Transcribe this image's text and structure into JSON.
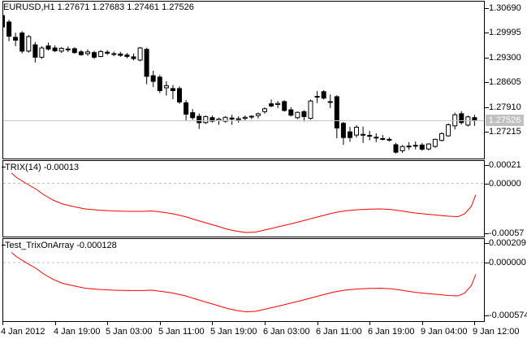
{
  "title": {
    "text": "EURUSD,H1 1.27671 1.27683 1.27461 1.27526"
  },
  "symbol": "EURUSD",
  "timeframe": "H1",
  "ohlc_display": {
    "open": "1.27671",
    "high": "1.27683",
    "low": "1.27461",
    "close": "1.27526"
  },
  "colors": {
    "background": "#ffffff",
    "border": "#000000",
    "bull_fill": "#ffffff",
    "bear_fill": "#000000",
    "wick": "#000000",
    "indicator_line": "#ff0000",
    "current_price_line": "#c8c8c8",
    "zero_line_dash": "#c0c0c0",
    "tag_bg": "#c0c0c0",
    "tag_text": "#ffffff"
  },
  "main_chart": {
    "price_tag": "1.27526",
    "y_tick_labels": [
      "1.30690",
      "1.29995",
      "1.29300",
      "1.28605",
      "1.27910",
      "1.27215"
    ]
  },
  "indicator1": {
    "label": "TRIX(14)",
    "value": "-0.00013",
    "y_tick_labels": [
      "0.00021",
      "0.00000",
      "-0.00057"
    ]
  },
  "indicator2": {
    "label": "Test_TrixOnArray",
    "value": "-0.000128",
    "y_tick_labels": [
      "0.000209",
      "0.000000",
      "-0.000574"
    ]
  },
  "time_axis": {
    "labels": [
      "4 Jan 2012",
      "4 Jan 19:00",
      "5 Jan 03:00",
      "5 Jan 11:00",
      "5 Jan 19:00",
      "6 Jan 03:00",
      "6 Jan 11:00",
      "6 Jan 19:00",
      "9 Jan 04:00",
      "9 Jan 12:00"
    ]
  },
  "chart_data": [
    {
      "type": "candlestick",
      "panel": "main",
      "title": "EURUSD,H1",
      "current_price": 1.27526,
      "y_axis_ticks": [
        1.3069,
        1.29995,
        1.293,
        1.28605,
        1.2791,
        1.27215
      ],
      "x_tick_labels": [
        "4 Jan 2012",
        "4 Jan 19:00",
        "5 Jan 03:00",
        "5 Jan 11:00",
        "5 Jan 19:00",
        "6 Jan 03:00",
        "6 Jan 11:00",
        "6 Jan 19:00",
        "9 Jan 04:00",
        "9 Jan 12:00"
      ],
      "candles_ohlc": [
        [
          1.3048,
          1.3053,
          1.3,
          1.3016
        ],
        [
          1.303,
          1.3036,
          1.2976,
          1.299
        ],
        [
          1.2987,
          1.3,
          1.2962,
          1.2979
        ],
        [
          1.2999,
          1.3004,
          1.2942,
          1.2948
        ],
        [
          1.2948,
          1.2993,
          1.2944,
          1.2989
        ],
        [
          1.2966,
          1.2974,
          1.2916,
          1.2931
        ],
        [
          1.2931,
          1.2962,
          1.2926,
          1.2957
        ],
        [
          1.2963,
          1.2972,
          1.295,
          1.2954
        ],
        [
          1.2957,
          1.2964,
          1.2945,
          1.2949
        ],
        [
          1.2948,
          1.2959,
          1.2943,
          1.2956
        ],
        [
          1.2954,
          1.2961,
          1.2945,
          1.2952
        ],
        [
          1.2955,
          1.2959,
          1.2941,
          1.2944
        ],
        [
          1.2946,
          1.2951,
          1.2935,
          1.2938
        ],
        [
          1.2941,
          1.2953,
          1.2935,
          1.2946
        ],
        [
          1.2944,
          1.2949,
          1.2926,
          1.2931
        ],
        [
          1.2933,
          1.2951,
          1.2931,
          1.2947
        ],
        [
          1.2945,
          1.2951,
          1.2937,
          1.2942
        ],
        [
          1.2941,
          1.2947,
          1.2934,
          1.2939
        ],
        [
          1.294,
          1.2946,
          1.2932,
          1.2936
        ],
        [
          1.2937,
          1.2943,
          1.2928,
          1.2933
        ],
        [
          1.2932,
          1.2941,
          1.2922,
          1.2927
        ],
        [
          1.2923,
          1.296,
          1.2919,
          1.2957
        ],
        [
          1.2953,
          1.2958,
          1.2855,
          1.2877
        ],
        [
          1.2879,
          1.2893,
          1.2847,
          1.2863
        ],
        [
          1.2875,
          1.2881,
          1.283,
          1.2837
        ],
        [
          1.2845,
          1.2863,
          1.2823,
          1.2851
        ],
        [
          1.2843,
          1.2853,
          1.2813,
          1.2837
        ],
        [
          1.2843,
          1.2849,
          1.28,
          1.2805
        ],
        [
          1.2803,
          1.2811,
          1.2754,
          1.2771
        ],
        [
          1.2775,
          1.2785,
          1.2755,
          1.2761
        ],
        [
          1.2765,
          1.2773,
          1.2729,
          1.2747
        ],
        [
          1.2747,
          1.2767,
          1.2743,
          1.2764
        ],
        [
          1.2761,
          1.2767,
          1.2747,
          1.2751
        ],
        [
          1.2753,
          1.2761,
          1.2741,
          1.2757
        ],
        [
          1.2751,
          1.2765,
          1.2747,
          1.2762
        ],
        [
          1.276,
          1.2769,
          1.2741,
          1.2757
        ],
        [
          1.2755,
          1.2765,
          1.2747,
          1.2758
        ],
        [
          1.2759,
          1.2767,
          1.2751,
          1.2762
        ],
        [
          1.2763,
          1.2768,
          1.2757,
          1.2765
        ],
        [
          1.2767,
          1.2775,
          1.2759,
          1.2772
        ],
        [
          1.2778,
          1.279,
          1.2772,
          1.2786
        ],
        [
          1.28,
          1.2812,
          1.279,
          1.2794
        ],
        [
          1.2798,
          1.2808,
          1.2788,
          1.2801
        ],
        [
          1.2806,
          1.281,
          1.2778,
          1.2781
        ],
        [
          1.2783,
          1.279,
          1.2764,
          1.2768
        ],
        [
          1.2761,
          1.2778,
          1.2757,
          1.2776
        ],
        [
          1.2778,
          1.2782,
          1.275,
          1.2764
        ],
        [
          1.2759,
          1.2812,
          1.2755,
          1.2808
        ],
        [
          1.282,
          1.2836,
          1.2802,
          1.2821
        ],
        [
          1.2834,
          1.2838,
          1.2812,
          1.2816
        ],
        [
          1.2805,
          1.2826,
          1.2788,
          1.2806
        ],
        [
          1.282,
          1.2824,
          1.2703,
          1.2732
        ],
        [
          1.2745,
          1.2749,
          1.2685,
          1.2705
        ],
        [
          1.2721,
          1.2735,
          1.2693,
          1.2705
        ],
        [
          1.2712,
          1.274,
          1.2705,
          1.2734
        ],
        [
          1.2714,
          1.2736,
          1.269,
          1.2713
        ],
        [
          1.271,
          1.2724,
          1.2697,
          1.2711
        ],
        [
          1.2705,
          1.2717,
          1.2692,
          1.2706
        ],
        [
          1.2702,
          1.2712,
          1.2697,
          1.2701
        ],
        [
          1.27,
          1.2706,
          1.2694,
          1.2698
        ],
        [
          1.2685,
          1.269,
          1.266,
          1.2664
        ],
        [
          1.2668,
          1.2684,
          1.2662,
          1.268
        ],
        [
          1.268,
          1.2692,
          1.267,
          1.2681
        ],
        [
          1.2682,
          1.2694,
          1.2672,
          1.2683
        ],
        [
          1.2684,
          1.269,
          1.2668,
          1.2672
        ],
        [
          1.2673,
          1.2689,
          1.2669,
          1.2687
        ],
        [
          1.268,
          1.2702,
          1.2676,
          1.27
        ],
        [
          1.2697,
          1.272,
          1.2694,
          1.2716
        ],
        [
          1.271,
          1.2745,
          1.2707,
          1.2741
        ],
        [
          1.2738,
          1.2775,
          1.2728,
          1.2769
        ],
        [
          1.2772,
          1.2779,
          1.2742,
          1.2747
        ],
        [
          1.274,
          1.2767,
          1.2736,
          1.2763
        ],
        [
          1.2761,
          1.2769,
          1.2738,
          1.27526
        ]
      ]
    },
    {
      "type": "line",
      "panel": "indicator1",
      "name": "TRIX(14)",
      "last_value": -0.00013,
      "color": "#ff0000",
      "y_axis_ticks": [
        0.00021,
        0.0,
        -0.00057
      ],
      "points": [
        [
          1.4,
          0.000115
        ],
        [
          2.1,
          6.9e-05
        ],
        [
          3.7,
          -5e-06
        ],
        [
          5.2,
          -6.9e-05
        ],
        [
          6.2,
          -0.000124
        ],
        [
          7.7,
          -0.000189
        ],
        [
          9.2,
          -0.000235
        ],
        [
          10.8,
          -0.000262
        ],
        [
          12.6,
          -0.00029
        ],
        [
          14.7,
          -0.000304
        ],
        [
          17,
          -0.000313
        ],
        [
          19.4,
          -0.000317
        ],
        [
          21.3,
          -0.000317
        ],
        [
          22.8,
          -0.000313
        ],
        [
          24.4,
          -0.000327
        ],
        [
          26,
          -0.000345
        ],
        [
          27.9,
          -0.000377
        ],
        [
          29.3,
          -0.000409
        ],
        [
          31.2,
          -0.000451
        ],
        [
          32.7,
          -0.000483
        ],
        [
          34.3,
          -0.00052
        ],
        [
          35.8,
          -0.000543
        ],
        [
          37.2,
          -0.000557
        ],
        [
          38.6,
          -0.000552
        ],
        [
          40.5,
          -0.00052
        ],
        [
          42.4,
          -0.000487
        ],
        [
          44.2,
          -0.000455
        ],
        [
          46.1,
          -0.000419
        ],
        [
          48,
          -0.000382
        ],
        [
          50.4,
          -0.000336
        ],
        [
          52.1,
          -0.000313
        ],
        [
          54.1,
          -0.000299
        ],
        [
          56,
          -0.000293
        ],
        [
          57.6,
          -0.00029
        ],
        [
          59.3,
          -0.000297
        ],
        [
          60.9,
          -0.000313
        ],
        [
          62.9,
          -0.000336
        ],
        [
          64.8,
          -0.00035
        ],
        [
          66.5,
          -0.000362
        ],
        [
          68.1,
          -0.000373
        ],
        [
          69.5,
          -0.000377
        ],
        [
          70.5,
          -0.000345
        ],
        [
          71.5,
          -0.000262
        ],
        [
          72.2,
          -0.00013
        ]
      ]
    },
    {
      "type": "line",
      "panel": "indicator2",
      "name": "Test_TrixOnArray",
      "last_value": -0.000128,
      "color": "#ff0000",
      "y_axis_ticks": [
        0.000209,
        0.0,
        -0.000574
      ],
      "points": [
        [
          1.4,
          0.00011
        ],
        [
          2.1,
          6.6e-05
        ],
        [
          3.7,
          -5e-06
        ],
        [
          5.2,
          -6.6e-05
        ],
        [
          6.2,
          -0.000119
        ],
        [
          7.7,
          -0.000181
        ],
        [
          9.2,
          -0.000225
        ],
        [
          10.8,
          -0.00025
        ],
        [
          12.6,
          -0.000277
        ],
        [
          14.7,
          -0.00029
        ],
        [
          17,
          -0.000299
        ],
        [
          19.4,
          -0.000303
        ],
        [
          21.3,
          -0.000303
        ],
        [
          22.8,
          -0.000299
        ],
        [
          24.4,
          -0.000313
        ],
        [
          26,
          -0.00033
        ],
        [
          27.9,
          -0.00036
        ],
        [
          29.3,
          -0.000391
        ],
        [
          31.2,
          -0.000431
        ],
        [
          32.7,
          -0.000462
        ],
        [
          34.3,
          -0.000497
        ],
        [
          35.8,
          -0.000519
        ],
        [
          37.2,
          -0.000533
        ],
        [
          38.6,
          -0.000528
        ],
        [
          40.5,
          -0.000497
        ],
        [
          42.4,
          -0.000466
        ],
        [
          44.2,
          -0.000435
        ],
        [
          46.1,
          -0.000401
        ],
        [
          48,
          -0.000365
        ],
        [
          50.4,
          -0.000321
        ],
        [
          52.1,
          -0.000299
        ],
        [
          54.1,
          -0.000286
        ],
        [
          56,
          -0.00028
        ],
        [
          57.6,
          -0.000277
        ],
        [
          59.3,
          -0.000284
        ],
        [
          60.9,
          -0.000299
        ],
        [
          62.9,
          -0.000321
        ],
        [
          64.8,
          -0.000335
        ],
        [
          66.5,
          -0.000346
        ],
        [
          68.1,
          -0.000357
        ],
        [
          69.5,
          -0.00036
        ],
        [
          70.5,
          -0.00033
        ],
        [
          71.5,
          -0.00025
        ],
        [
          72.2,
          -0.000128
        ]
      ]
    }
  ]
}
